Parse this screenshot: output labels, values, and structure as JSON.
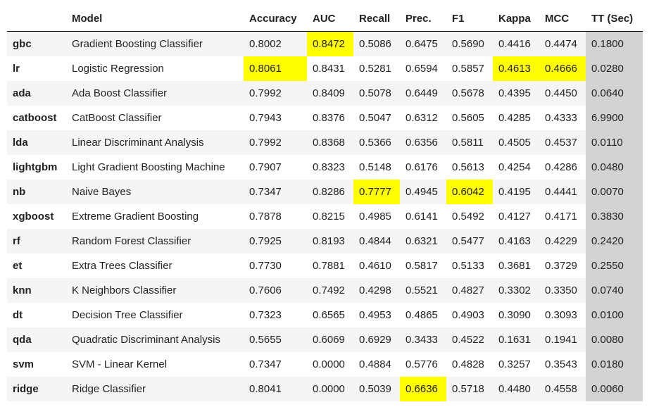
{
  "table": {
    "columns": [
      "Model",
      "Accuracy",
      "AUC",
      "Recall",
      "Prec.",
      "F1",
      "Kappa",
      "MCC",
      "TT (Sec)"
    ],
    "rows": [
      [
        "gbc",
        "Gradient Boosting Classifier",
        "0.8002",
        "0.8472",
        "0.5086",
        "0.6475",
        "0.5690",
        "0.4416",
        "0.4474",
        "0.1800"
      ],
      [
        "lr",
        "Logistic Regression",
        "0.8061",
        "0.8431",
        "0.5281",
        "0.6594",
        "0.5857",
        "0.4613",
        "0.4666",
        "0.0280"
      ],
      [
        "ada",
        "Ada Boost Classifier",
        "0.7992",
        "0.8409",
        "0.5078",
        "0.6449",
        "0.5678",
        "0.4395",
        "0.4450",
        "0.0640"
      ],
      [
        "catboost",
        "CatBoost Classifier",
        "0.7943",
        "0.8376",
        "0.5047",
        "0.6312",
        "0.5605",
        "0.4285",
        "0.4333",
        "6.9900"
      ],
      [
        "lda",
        "Linear Discriminant Analysis",
        "0.7992",
        "0.8368",
        "0.5366",
        "0.6356",
        "0.5811",
        "0.4505",
        "0.4537",
        "0.0110"
      ],
      [
        "lightgbm",
        "Light Gradient Boosting Machine",
        "0.7907",
        "0.8323",
        "0.5148",
        "0.6176",
        "0.5613",
        "0.4254",
        "0.4286",
        "0.0480"
      ],
      [
        "nb",
        "Naive Bayes",
        "0.7347",
        "0.8286",
        "0.7777",
        "0.4945",
        "0.6042",
        "0.4195",
        "0.4441",
        "0.0070"
      ],
      [
        "xgboost",
        "Extreme Gradient Boosting",
        "0.7878",
        "0.8215",
        "0.4985",
        "0.6141",
        "0.5492",
        "0.4127",
        "0.4171",
        "0.3830"
      ],
      [
        "rf",
        "Random Forest Classifier",
        "0.7925",
        "0.8193",
        "0.4844",
        "0.6321",
        "0.5477",
        "0.4163",
        "0.4229",
        "0.2420"
      ],
      [
        "et",
        "Extra Trees Classifier",
        "0.7730",
        "0.7881",
        "0.4610",
        "0.5817",
        "0.5133",
        "0.3681",
        "0.3729",
        "0.2550"
      ],
      [
        "knn",
        "K Neighbors Classifier",
        "0.7606",
        "0.7492",
        "0.4298",
        "0.5521",
        "0.4827",
        "0.3302",
        "0.3350",
        "0.0740"
      ],
      [
        "dt",
        "Decision Tree Classifier",
        "0.7323",
        "0.6565",
        "0.4953",
        "0.4865",
        "0.4903",
        "0.3090",
        "0.3093",
        "0.0100"
      ],
      [
        "qda",
        "Quadratic Discriminant Analysis",
        "0.5655",
        "0.6069",
        "0.6929",
        "0.3433",
        "0.4522",
        "0.1631",
        "0.1941",
        "0.0080"
      ],
      [
        "svm",
        "SVM - Linear Kernel",
        "0.7347",
        "0.0000",
        "0.4884",
        "0.5776",
        "0.4828",
        "0.3257",
        "0.3543",
        "0.0180"
      ],
      [
        "ridge",
        "Ridge Classifier",
        "0.8041",
        "0.0000",
        "0.5039",
        "0.6636",
        "0.5718",
        "0.4480",
        "0.4558",
        "0.0060"
      ]
    ]
  }
}
